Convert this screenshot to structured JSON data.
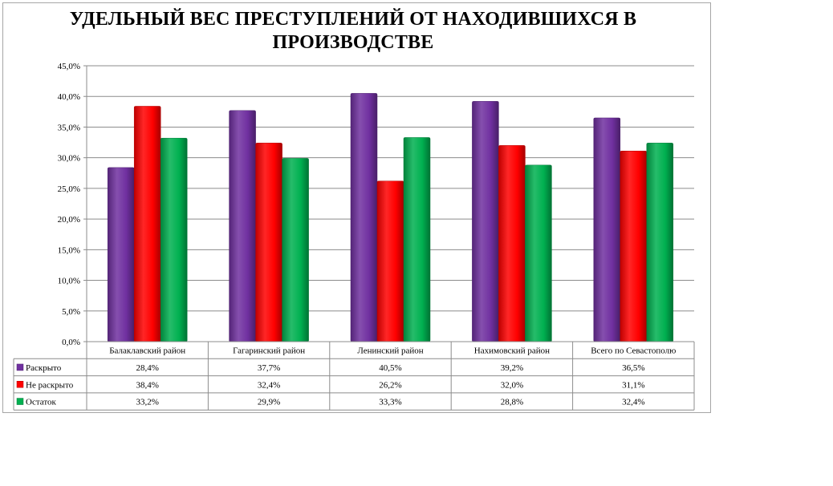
{
  "chart_data": {
    "type": "bar",
    "title": "УДЕЛЬНЫЙ ВЕС ПРЕСТУПЛЕНИЙ ОТ НАХОДИВШИХСЯ В ПРОИЗВОДСТВЕ",
    "categories": [
      "Балаклавский район",
      "Гагаринский район",
      "Ленинский район",
      "Нахимовский район",
      "Всего по Севастополю"
    ],
    "series": [
      {
        "name": "Раскрыто",
        "color": "#7030a0",
        "values": [
          28.4,
          37.7,
          40.5,
          39.2,
          36.5
        ],
        "labels": [
          "28,4%",
          "37,7%",
          "40,5%",
          "39,2%",
          "36,5%"
        ]
      },
      {
        "name": "Не раскрыто",
        "color": "#ff0000",
        "values": [
          38.4,
          32.4,
          26.2,
          32.0,
          31.1
        ],
        "labels": [
          "38,4%",
          "32,4%",
          "26,2%",
          "32,0%",
          "31,1%"
        ]
      },
      {
        "name": "Остаток",
        "color": "#00b050",
        "values": [
          33.2,
          29.9,
          33.3,
          28.8,
          32.4
        ],
        "labels": [
          "33,2%",
          "29,9%",
          "33,3%",
          "28,8%",
          "32,4%"
        ]
      }
    ],
    "ylim": [
      0,
      45
    ],
    "yticks": [
      "0,0%",
      "5,0%",
      "10,0%",
      "15,0%",
      "20,0%",
      "25,0%",
      "30,0%",
      "35,0%",
      "40,0%",
      "45,0%"
    ],
    "grid": true,
    "legend": "data-table"
  }
}
